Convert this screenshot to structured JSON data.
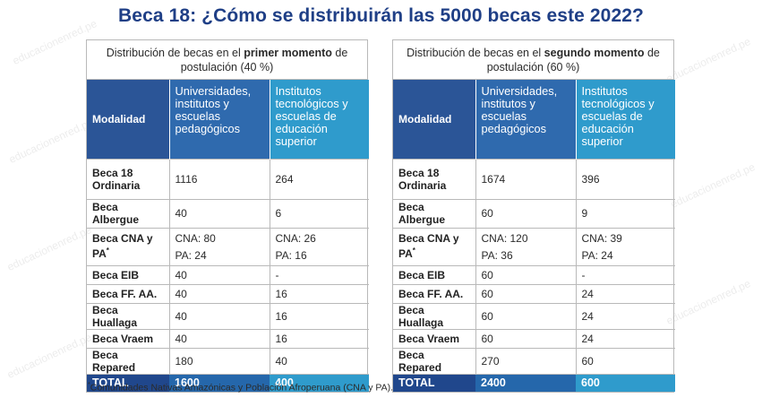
{
  "title": "Beca 18: ¿Cómo se distribuirán las 5000 becas este 2022?",
  "watermark": "educacionenred.pe",
  "colors": {
    "title": "#1f3f86",
    "header_modalidad": "#2b5597",
    "header_universidades": "#2f6aae",
    "header_institutos": "#2f9bcc",
    "total_row": "#20478c"
  },
  "panels": [
    {
      "caption_pre": "Distribución de becas en el ",
      "caption_bold": "primer momento",
      "caption_post": " de postulación (40 %)",
      "headers": {
        "modalidad": "Modalidad",
        "universidades": "Universidades, institutos y escuelas pedagógicos",
        "institutos": "Institutos tecnológicos y escuelas de educación superior"
      },
      "rows": {
        "ordinaria": {
          "label": "Beca 18 Ordinaria",
          "uni": "1116",
          "ins": "264"
        },
        "albergue": {
          "label": "Beca Albergue",
          "uni": "40",
          "ins": "6"
        },
        "cna": {
          "label": "Beca CNA y PA",
          "mark": "*",
          "uni_cna": "CNA: 80",
          "uni_pa": "PA: 24",
          "ins_cna": "CNA: 26",
          "ins_pa": "PA: 16"
        },
        "eib": {
          "label": "Beca EIB",
          "uni": "40",
          "ins": "-"
        },
        "ffaa": {
          "label": "Beca FF. AA.",
          "uni": "40",
          "ins": "16"
        },
        "huallaga": {
          "label": "Beca Huallaga",
          "uni": "40",
          "ins": "16"
        },
        "vraem": {
          "label": "Beca Vraem",
          "uni": "40",
          "ins": "16"
        },
        "repared": {
          "label": "Beca Repared",
          "uni": "180",
          "ins": "40"
        }
      },
      "total": {
        "label": "TOTAL",
        "uni": "1600",
        "ins": "400"
      }
    },
    {
      "caption_pre": "Distribución de becas en el ",
      "caption_bold": "segundo momento",
      "caption_post": " de postulación (60 %)",
      "headers": {
        "modalidad": "Modalidad",
        "universidades": "Universidades, institutos y escuelas pedagógicos",
        "institutos": "Institutos tecnológicos y escuelas de educación superior"
      },
      "rows": {
        "ordinaria": {
          "label": "Beca 18 Ordinaria",
          "uni": "1674",
          "ins": "396"
        },
        "albergue": {
          "label": "Beca Albergue",
          "uni": "60",
          "ins": "9"
        },
        "cna": {
          "label": "Beca CNA y PA",
          "mark": "*",
          "uni_cna": "CNA: 120",
          "uni_pa": "PA: 36",
          "ins_cna": "CNA: 39",
          "ins_pa": "PA: 24"
        },
        "eib": {
          "label": "Beca EIB",
          "uni": "60",
          "ins": "-"
        },
        "ffaa": {
          "label": "Beca FF. AA.",
          "uni": "60",
          "ins": "24"
        },
        "huallaga": {
          "label": "Beca Huallaga",
          "uni": "60",
          "ins": "24"
        },
        "vraem": {
          "label": "Beca Vraem",
          "uni": "60",
          "ins": "24"
        },
        "repared": {
          "label": "Beca Repared",
          "uni": "270",
          "ins": "60"
        }
      },
      "total": {
        "label": "TOTAL",
        "uni": "2400",
        "ins": "600"
      }
    }
  ],
  "footnote": {
    "mark": "*",
    "text": "Comunidades Nativas Amazónicas y Población Afroperuana (CNA y PA)."
  }
}
